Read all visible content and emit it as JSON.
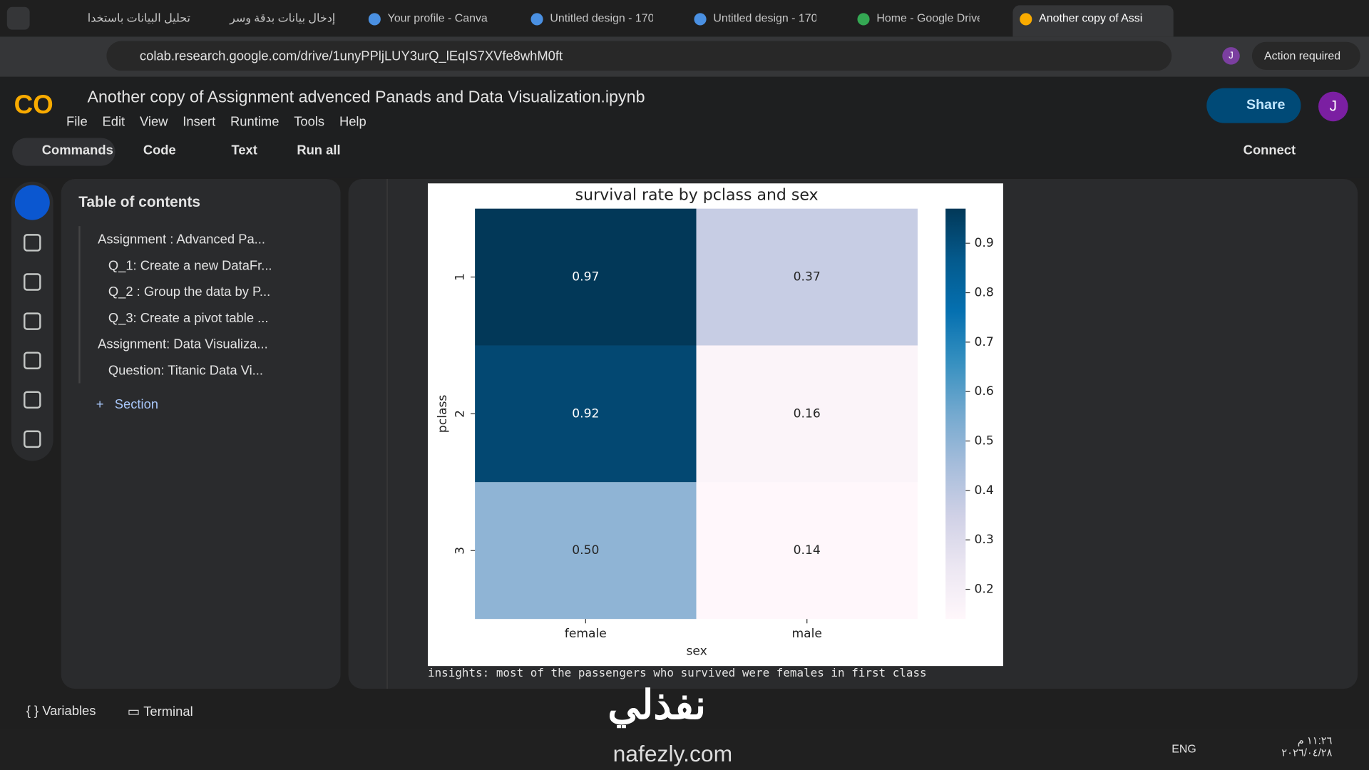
{
  "browser": {
    "tabs": [
      "تحليل البيانات باستخدا",
      "إدخال بيانات بدقة وسر",
      "Your profile - Canva",
      "Untitled design - 170",
      "Untitled design - 170",
      "Home - Google Drive",
      "Another copy of Assi"
    ],
    "url": "colab.research.google.com/drive/1unyPPljLUY3urQ_lEqIS7XVfe8whM0ft",
    "profile": "J",
    "action": "Action required"
  },
  "notebook": {
    "title": "Another copy of Assignment advenced Panads and Data Visualization.ipynb",
    "menu": [
      "File",
      "Edit",
      "View",
      "Insert",
      "Runtime",
      "Tools",
      "Help"
    ],
    "toolbar": [
      "Commands",
      "Code",
      "Text",
      "Run all"
    ],
    "connect": "Connect",
    "share": "Share",
    "avatar": "J"
  },
  "toc": {
    "title": "Table of contents",
    "items": [
      "Assignment : Advanced Pa...",
      "Q_1: Create a new DataFr...",
      "Q_2 : Group the data by P...",
      "Q_3: Create a pivot table ...",
      "Assignment: Data Visualiza...",
      "Question: Titanic Data Vi..."
    ],
    "add": "Section"
  },
  "chart_data": {
    "type": "heatmap",
    "title": "survival rate by pclass and sex",
    "x_label": "sex",
    "y_label": "pclass",
    "x_categories": [
      "female",
      "male"
    ],
    "y_categories": [
      "1",
      "2",
      "3"
    ],
    "values": [
      [
        0.97,
        0.37
      ],
      [
        0.92,
        0.16
      ],
      [
        0.5,
        0.14
      ]
    ],
    "value_labels": [
      [
        "0.97",
        "0.37"
      ],
      [
        "0.92",
        "0.16"
      ],
      [
        "0.50",
        "0.14"
      ]
    ],
    "colormap": "PuBu",
    "clim": [
      0.14,
      0.97
    ],
    "cticks": [
      0.2,
      0.3,
      0.4,
      0.5,
      0.6,
      0.7,
      0.8,
      0.9
    ]
  },
  "output": "insights: most of the passengers who survived were females in first class",
  "bottom": {
    "variables": "Variables",
    "terminal": "Terminal"
  },
  "watermark": {
    "name": "نفذلي",
    "site": "nafezly.com"
  },
  "taskbar": {
    "lang": "ENG",
    "time": "١١:٢٦ م",
    "date": "٢٠٢٦/٠٤/٢٨"
  }
}
